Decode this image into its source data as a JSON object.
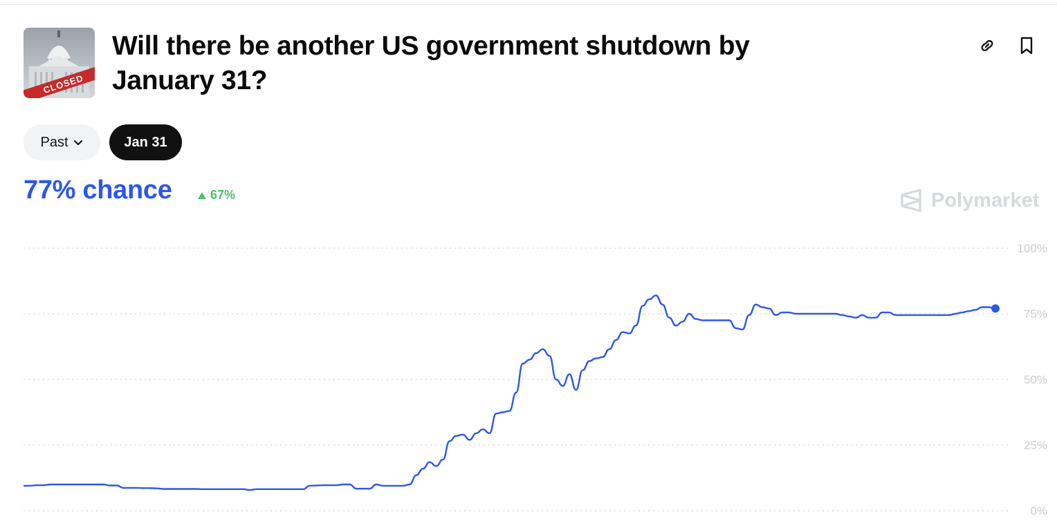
{
  "market": {
    "title": "Will there be another US government shutdown by January 31?",
    "thumbnail": {
      "label": "CLOSED",
      "icon": "capitol-closed-image"
    }
  },
  "actions": {
    "link_icon": "link-icon",
    "bookmark_icon": "bookmark-icon"
  },
  "filters": {
    "past_label": "Past",
    "selected_date": "Jan 31"
  },
  "summary": {
    "chance_text": "77% chance",
    "change_text": "67%",
    "change_direction": "up"
  },
  "brand": {
    "name": "Polymarket"
  },
  "colors": {
    "accent": "#2d57e8",
    "positive": "#4fbf6a",
    "brand_gray": "#d6d9de",
    "tick_gray": "#c9ccd1"
  },
  "chart_data": {
    "type": "line",
    "title": "",
    "xlabel": "",
    "ylabel": "",
    "ylim": [
      0,
      100
    ],
    "y_ticks": [
      100,
      75,
      50,
      25,
      0
    ],
    "y_tick_labels": [
      "100%",
      "75%",
      "50%",
      "25%",
      "0%"
    ],
    "grid": true,
    "legend": "none",
    "end_marker": true,
    "series": [
      {
        "name": "",
        "color": "#2d57e8",
        "values": [
          9.5,
          9.5,
          9.7,
          9.7,
          10.0,
          10.0,
          10.0,
          10.0,
          10.0,
          10.0,
          10.0,
          10.0,
          10.0,
          9.6,
          9.6,
          8.7,
          8.7,
          8.7,
          8.6,
          8.6,
          8.5,
          8.3,
          8.3,
          8.3,
          8.3,
          8.3,
          8.3,
          8.2,
          8.2,
          8.2,
          8.2,
          8.2,
          8.2,
          8.2,
          7.9,
          8.2,
          8.2,
          8.2,
          8.2,
          8.2,
          8.2,
          8.2,
          8.2,
          9.5,
          9.6,
          9.7,
          9.7,
          9.7,
          10.0,
          10.0,
          8.4,
          8.4,
          8.4,
          10.0,
          9.5,
          9.5,
          9.5,
          9.5,
          10.0,
          13.5,
          16.0,
          18.5,
          17.0,
          19.5,
          26.5,
          28.5,
          29.0,
          27.0,
          29.5,
          31.0,
          29.5,
          37.0,
          37.5,
          38.0,
          45.0,
          56.0,
          57.5,
          60.0,
          61.5,
          59.0,
          50.0,
          47.5,
          52.0,
          46.0,
          53.5,
          57.0,
          58.0,
          58.5,
          61.5,
          65.0,
          68.0,
          67.5,
          70.5,
          78.0,
          80.5,
          82.0,
          78.5,
          73.5,
          70.5,
          72.0,
          75.0,
          73.0,
          72.5,
          72.5,
          72.5,
          72.5,
          72.5,
          69.5,
          69.0,
          74.5,
          78.5,
          77.5,
          77.0,
          74.5,
          75.5,
          75.5,
          75.0,
          75.0,
          75.0,
          75.0,
          75.0,
          75.0,
          75.0,
          74.5,
          74.0,
          73.5,
          74.5,
          73.5,
          73.5,
          75.5,
          75.5,
          74.5,
          74.5,
          74.5,
          74.5,
          74.5,
          74.5,
          74.5,
          74.5,
          74.5,
          75.0,
          75.5,
          76.0,
          76.5,
          77.5,
          77.5,
          77.0
        ]
      }
    ]
  }
}
